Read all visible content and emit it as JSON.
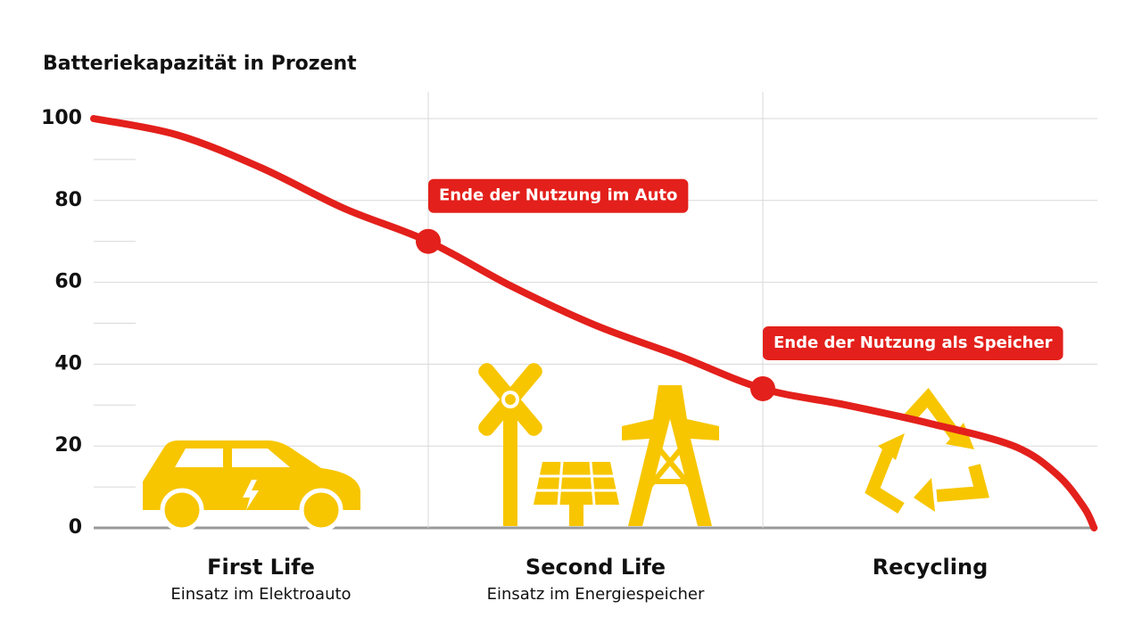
{
  "chart_data": {
    "type": "line",
    "title": "Batteriekapazität in Prozent",
    "x": [
      0,
      0.25,
      0.5,
      0.75,
      1,
      1.25,
      1.5,
      1.75,
      2,
      2.25,
      2.5,
      2.75,
      2.88,
      2.96,
      2.99
    ],
    "values": [
      100,
      96,
      88,
      78,
      70,
      59,
      49.5,
      42,
      34,
      30,
      25.5,
      20,
      13,
      5,
      0
    ],
    "color": "#e3201b",
    "xlim": [
      0,
      3
    ],
    "ylim": [
      0,
      100
    ],
    "yticks": [
      0,
      20,
      40,
      60,
      80,
      100
    ],
    "minor_yticks": [
      10,
      30,
      50,
      70,
      90
    ],
    "grid": true,
    "annotations": [
      {
        "text": "Ende der Nutzung im Auto",
        "x": 1,
        "y": 70
      },
      {
        "text": "Ende der Nutzung als Speicher",
        "x": 2,
        "y": 34
      }
    ],
    "phases": [
      {
        "label": "First Life",
        "sublabel": "Einsatz im Elektroauto"
      },
      {
        "label": "Second Life",
        "sublabel": "Einsatz im Energiespeicher"
      },
      {
        "label": "Recycling"
      }
    ]
  }
}
